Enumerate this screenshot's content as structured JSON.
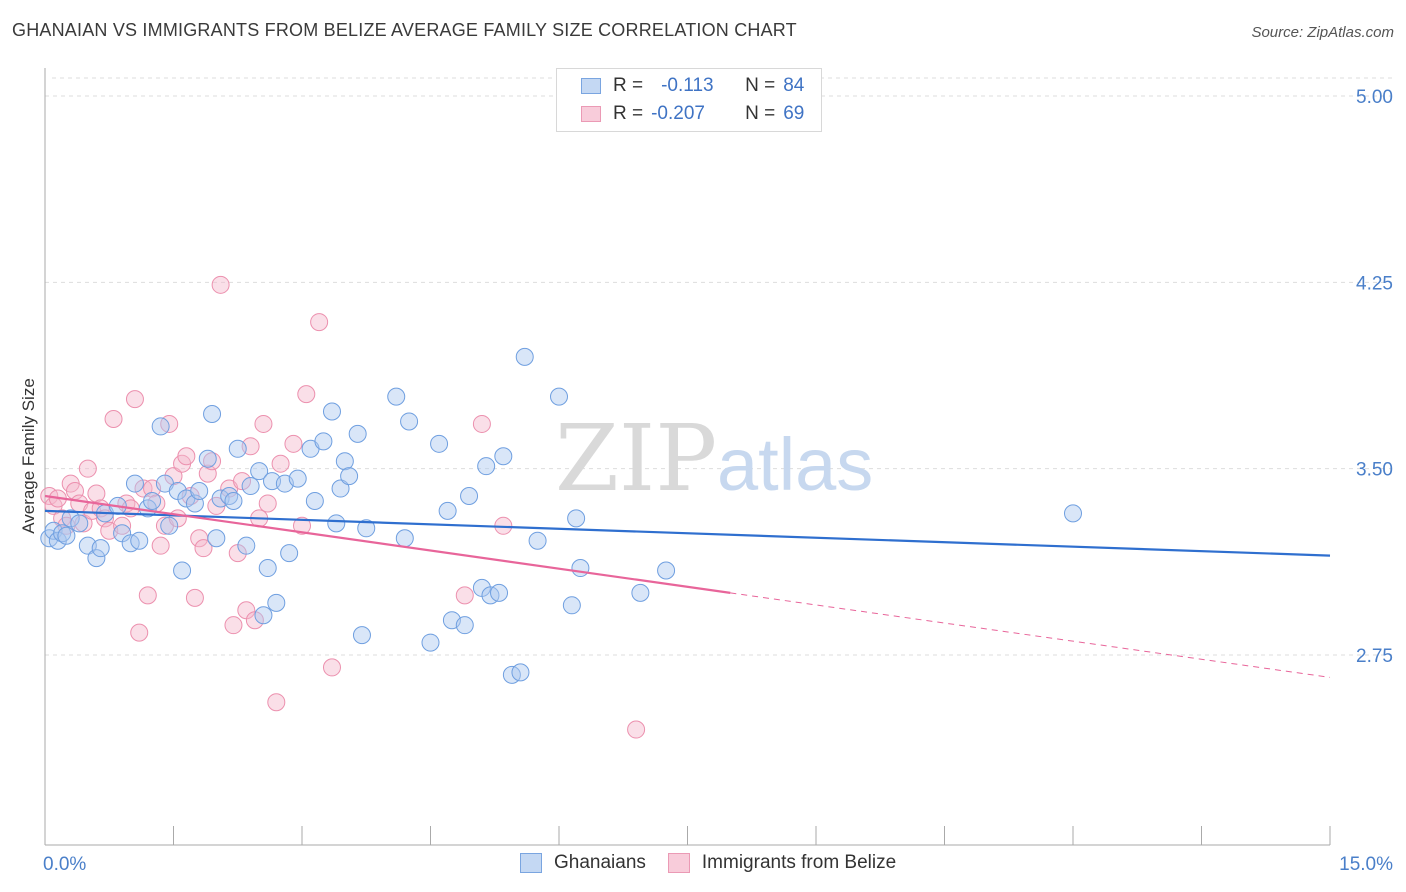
{
  "title": "GHANAIAN VS IMMIGRANTS FROM BELIZE AVERAGE FAMILY SIZE CORRELATION CHART",
  "source": "Source: ZipAtlas.com",
  "watermark": {
    "zip": "ZIP",
    "atlas": "atlas"
  },
  "legend_top": {
    "rows": [
      {
        "r_label": "R =",
        "r_value": "-0.113",
        "n_label": "N =",
        "n_value": "84"
      },
      {
        "r_label": "R =",
        "r_value": "-0.207",
        "n_label": "N =",
        "n_value": "69"
      }
    ]
  },
  "legend_bottom": {
    "series1": "Ghanaians",
    "series2": "Immigrants from Belize"
  },
  "colors": {
    "blue_fill": "#aac8f0",
    "blue_stroke": "#6f9fe0",
    "blue_line": "#2f6fcf",
    "pink_fill": "#f5b8cb",
    "pink_stroke": "#ec90ae",
    "pink_line": "#e8659a",
    "grid": "#dddddd",
    "tick_text": "#4a7fc9"
  },
  "chart_data": {
    "type": "scatter",
    "title": "GHANAIAN VS IMMIGRANTS FROM BELIZE AVERAGE FAMILY SIZE CORRELATION CHART",
    "xlabel": "",
    "ylabel": "Average Family Size",
    "xlim": [
      0,
      15
    ],
    "ylim": [
      2.0,
      5.1
    ],
    "y_ticks": [
      2.75,
      3.5,
      4.25,
      5.0
    ],
    "y_tick_labels": [
      "2.75",
      "3.50",
      "4.25",
      "5.00"
    ],
    "x_tick_labels": [
      "0.0%",
      "15.0%"
    ],
    "grid": true,
    "series": [
      {
        "name": "Ghanaians",
        "trend": {
          "x": [
            0,
            15
          ],
          "y": [
            3.33,
            3.15
          ]
        },
        "points": [
          [
            0.05,
            3.22
          ],
          [
            0.1,
            3.25
          ],
          [
            0.15,
            3.21
          ],
          [
            0.2,
            3.24
          ],
          [
            0.25,
            3.23
          ],
          [
            0.3,
            3.3
          ],
          [
            0.4,
            3.28
          ],
          [
            0.5,
            3.19
          ],
          [
            0.6,
            3.14
          ],
          [
            0.65,
            3.18
          ],
          [
            0.7,
            3.32
          ],
          [
            0.85,
            3.35
          ],
          [
            0.9,
            3.24
          ],
          [
            1.0,
            3.2
          ],
          [
            1.05,
            3.44
          ],
          [
            1.1,
            3.21
          ],
          [
            1.2,
            3.34
          ],
          [
            1.25,
            3.37
          ],
          [
            1.35,
            3.67
          ],
          [
            1.4,
            3.44
          ],
          [
            1.45,
            3.27
          ],
          [
            1.55,
            3.41
          ],
          [
            1.6,
            3.09
          ],
          [
            1.65,
            3.38
          ],
          [
            1.75,
            3.36
          ],
          [
            1.8,
            3.41
          ],
          [
            1.9,
            3.54
          ],
          [
            1.95,
            3.72
          ],
          [
            2.0,
            3.22
          ],
          [
            2.05,
            3.38
          ],
          [
            2.15,
            3.39
          ],
          [
            2.2,
            3.37
          ],
          [
            2.25,
            3.58
          ],
          [
            2.35,
            3.19
          ],
          [
            2.4,
            3.43
          ],
          [
            2.5,
            3.49
          ],
          [
            2.55,
            2.91
          ],
          [
            2.6,
            3.1
          ],
          [
            2.65,
            3.45
          ],
          [
            2.7,
            2.96
          ],
          [
            2.8,
            3.44
          ],
          [
            2.85,
            3.16
          ],
          [
            2.95,
            3.46
          ],
          [
            3.1,
            3.58
          ],
          [
            3.15,
            3.37
          ],
          [
            3.25,
            3.61
          ],
          [
            3.35,
            3.73
          ],
          [
            3.4,
            3.28
          ],
          [
            3.45,
            3.42
          ],
          [
            3.5,
            3.53
          ],
          [
            3.55,
            3.47
          ],
          [
            3.65,
            3.64
          ],
          [
            3.7,
            2.83
          ],
          [
            3.75,
            3.26
          ],
          [
            4.1,
            3.79
          ],
          [
            4.2,
            3.22
          ],
          [
            4.25,
            3.69
          ],
          [
            4.5,
            2.8
          ],
          [
            4.6,
            3.6
          ],
          [
            4.7,
            3.33
          ],
          [
            4.75,
            2.89
          ],
          [
            4.9,
            2.87
          ],
          [
            4.95,
            3.39
          ],
          [
            5.1,
            3.02
          ],
          [
            5.15,
            3.51
          ],
          [
            5.2,
            2.99
          ],
          [
            5.3,
            3.0
          ],
          [
            5.35,
            3.55
          ],
          [
            5.45,
            2.67
          ],
          [
            5.55,
            2.68
          ],
          [
            5.6,
            3.95
          ],
          [
            5.75,
            3.21
          ],
          [
            6.0,
            3.79
          ],
          [
            6.15,
            2.95
          ],
          [
            6.2,
            3.3
          ],
          [
            6.25,
            3.1
          ],
          [
            6.95,
            3.0
          ],
          [
            7.25,
            3.09
          ],
          [
            12.0,
            3.32
          ]
        ]
      },
      {
        "name": "Immigrants from Belize",
        "trend": {
          "x": [
            0,
            8.0,
            15
          ],
          "y": [
            3.39,
            3.0,
            2.66
          ]
        },
        "points": [
          [
            0.05,
            3.39
          ],
          [
            0.1,
            3.35
          ],
          [
            0.15,
            3.38
          ],
          [
            0.2,
            3.3
          ],
          [
            0.25,
            3.27
          ],
          [
            0.3,
            3.44
          ],
          [
            0.35,
            3.41
          ],
          [
            0.4,
            3.36
          ],
          [
            0.45,
            3.28
          ],
          [
            0.5,
            3.5
          ],
          [
            0.55,
            3.33
          ],
          [
            0.6,
            3.4
          ],
          [
            0.65,
            3.34
          ],
          [
            0.7,
            3.3
          ],
          [
            0.75,
            3.25
          ],
          [
            0.8,
            3.7
          ],
          [
            0.9,
            3.27
          ],
          [
            0.95,
            3.36
          ],
          [
            1.0,
            3.34
          ],
          [
            1.05,
            3.78
          ],
          [
            1.1,
            2.84
          ],
          [
            1.15,
            3.42
          ],
          [
            1.2,
            2.99
          ],
          [
            1.25,
            3.42
          ],
          [
            1.3,
            3.36
          ],
          [
            1.35,
            3.19
          ],
          [
            1.4,
            3.27
          ],
          [
            1.45,
            3.68
          ],
          [
            1.5,
            3.47
          ],
          [
            1.55,
            3.3
          ],
          [
            1.6,
            3.52
          ],
          [
            1.65,
            3.55
          ],
          [
            1.7,
            3.39
          ],
          [
            1.75,
            2.98
          ],
          [
            1.8,
            3.22
          ],
          [
            1.85,
            3.18
          ],
          [
            1.9,
            3.48
          ],
          [
            1.95,
            3.53
          ],
          [
            2.0,
            3.35
          ],
          [
            2.05,
            4.24
          ],
          [
            2.15,
            3.42
          ],
          [
            2.2,
            2.87
          ],
          [
            2.25,
            3.16
          ],
          [
            2.3,
            3.45
          ],
          [
            2.35,
            2.93
          ],
          [
            2.4,
            3.59
          ],
          [
            2.45,
            2.89
          ],
          [
            2.5,
            3.3
          ],
          [
            2.55,
            3.68
          ],
          [
            2.6,
            3.36
          ],
          [
            2.7,
            2.56
          ],
          [
            2.75,
            3.52
          ],
          [
            2.9,
            3.6
          ],
          [
            3.0,
            3.27
          ],
          [
            3.05,
            3.8
          ],
          [
            3.2,
            4.09
          ],
          [
            3.35,
            2.7
          ],
          [
            4.9,
            2.99
          ],
          [
            5.1,
            3.68
          ],
          [
            5.35,
            3.27
          ],
          [
            6.9,
            2.45
          ]
        ]
      }
    ]
  }
}
